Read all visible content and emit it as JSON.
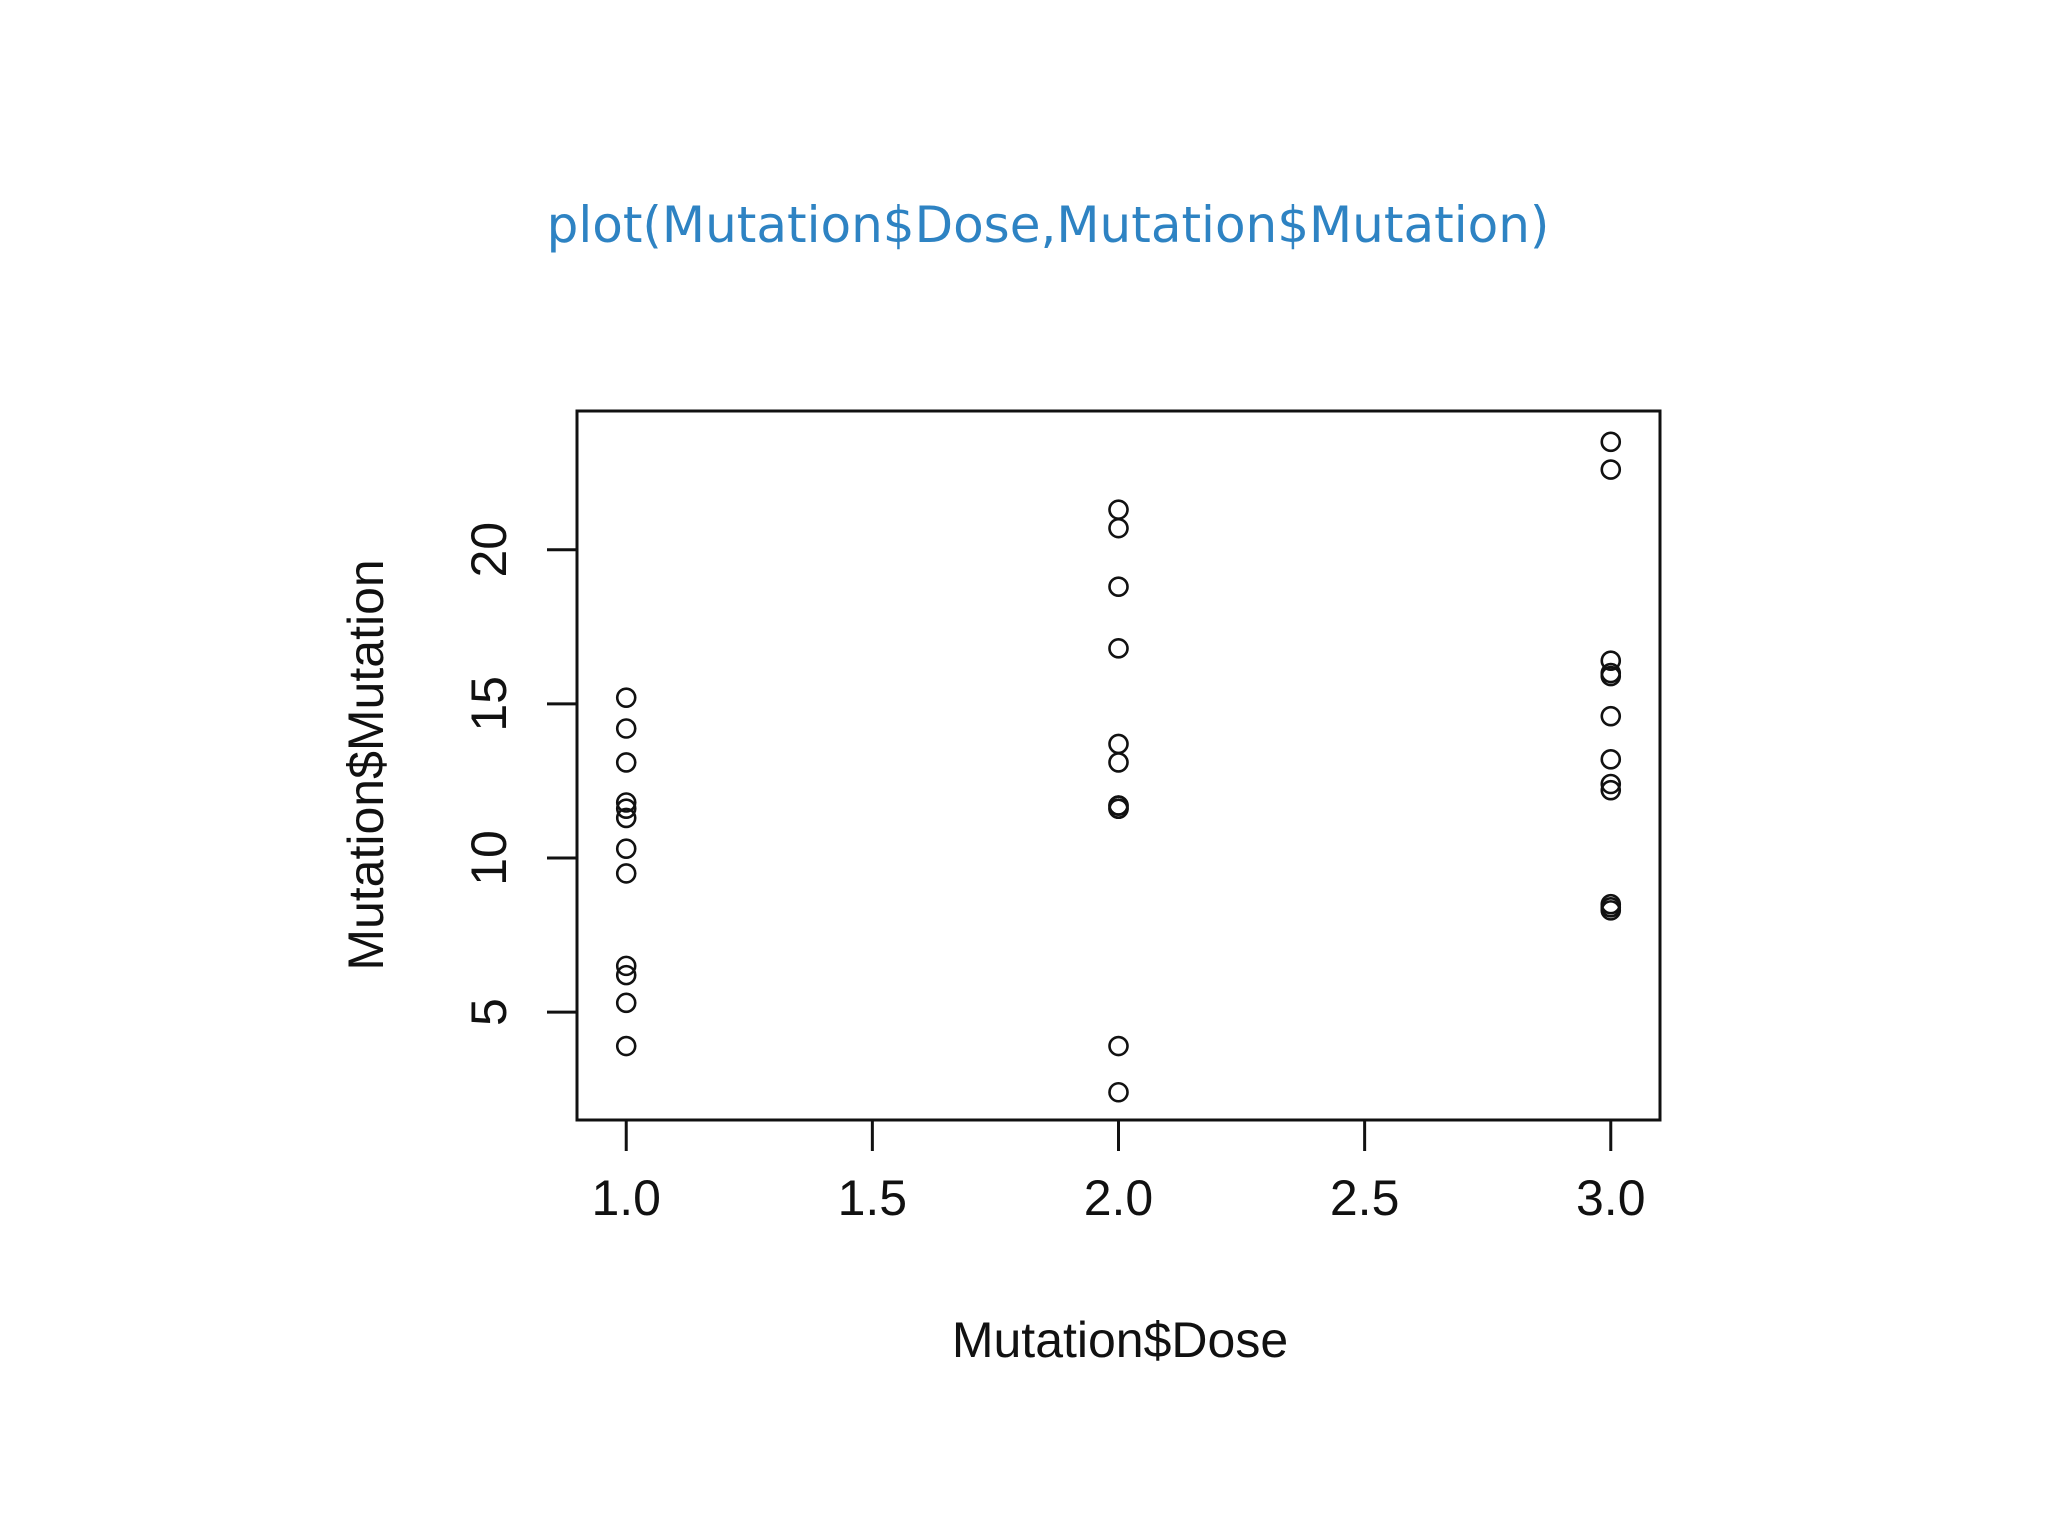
{
  "slide": {
    "title": "plot(Mutation$Dose,Mutation$Mutation)"
  },
  "colors": {
    "title": "#2e83c3",
    "ink": "#111111",
    "background": "#ffffff"
  },
  "chart_data": {
    "type": "scatter",
    "title": "",
    "xlabel": "Mutation$Dose",
    "ylabel": "Mutation$Mutation",
    "xlim": [
      0.9,
      3.1
    ],
    "ylim": [
      1.5,
      24.5
    ],
    "x_ticks": [
      1.0,
      1.5,
      2.0,
      2.5,
      3.0
    ],
    "x_tick_labels": [
      "1.0",
      "1.5",
      "2.0",
      "2.5",
      "3.0"
    ],
    "y_ticks": [
      5,
      10,
      15,
      20
    ],
    "y_tick_labels": [
      "5",
      "10",
      "15",
      "20"
    ],
    "marker": "open-circle",
    "grid": false,
    "series": [
      {
        "x": [
          1,
          1,
          1,
          1,
          1,
          1,
          1,
          1,
          1,
          1,
          1,
          1,
          2,
          2,
          2,
          2,
          2,
          2,
          2,
          2,
          2,
          2,
          2,
          2,
          3,
          3,
          3,
          3,
          3,
          3,
          3,
          3,
          3,
          3,
          3,
          3
        ],
        "y": [
          15.2,
          14.2,
          11.8,
          11.3,
          10.3,
          9.5,
          6.5,
          6.2,
          5.3,
          3.9,
          11.6,
          13.1,
          21.3,
          20.7,
          18.8,
          16.8,
          13.7,
          13.1,
          11.7,
          11.6,
          3.9,
          2.4,
          11.6,
          11.7,
          23.5,
          22.6,
          16.4,
          15.9,
          14.6,
          13.2,
          12.4,
          12.2,
          8.5,
          8.3,
          16.0,
          8.4
        ]
      }
    ]
  }
}
